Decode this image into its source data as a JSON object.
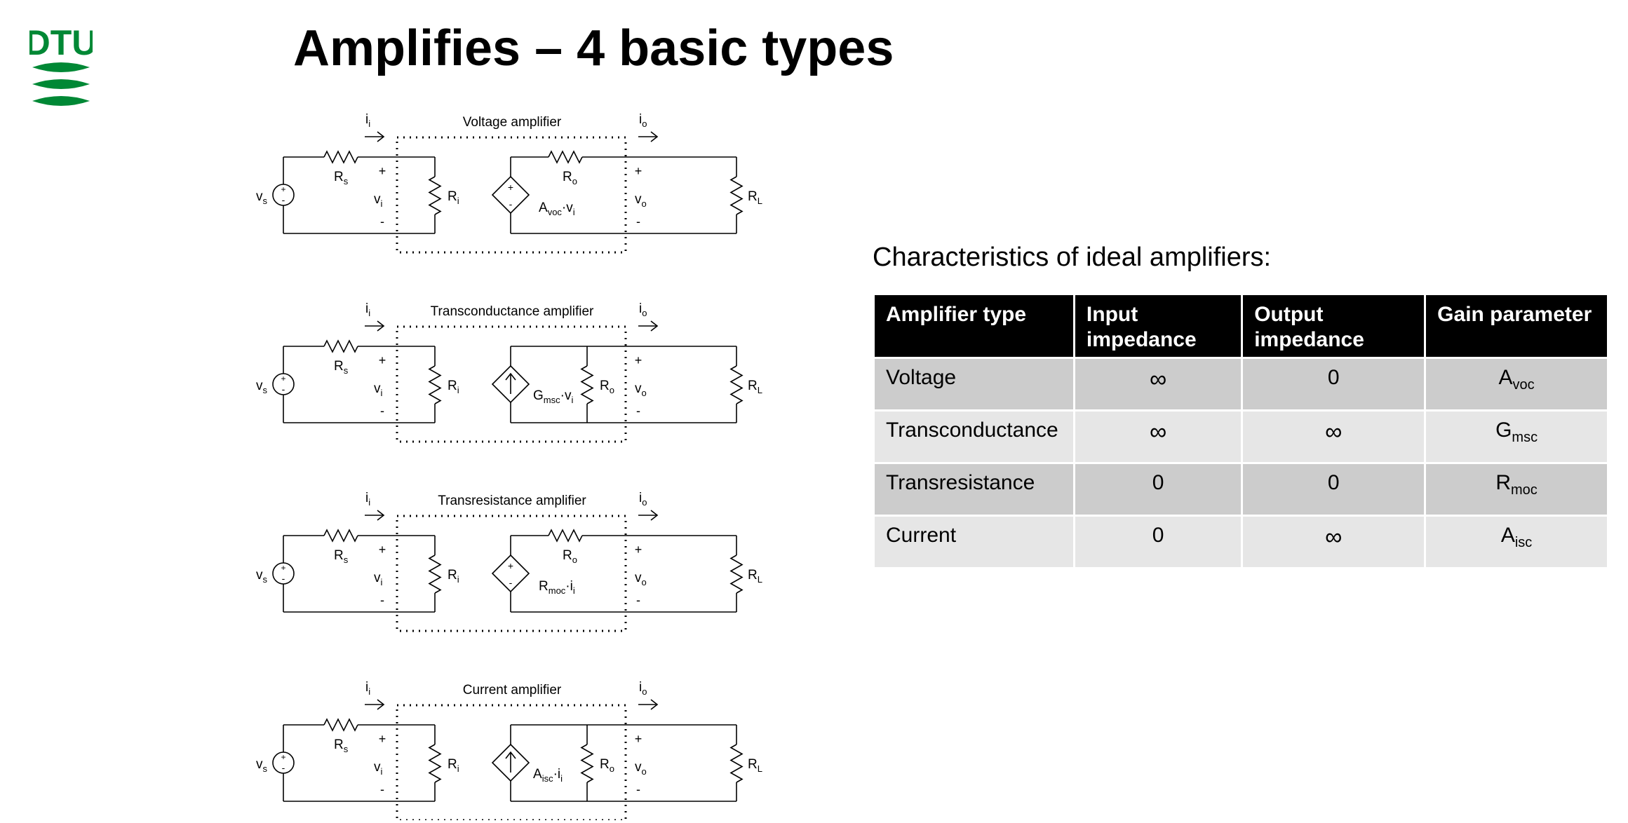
{
  "logo": {
    "text": "DTU",
    "color": "#008835"
  },
  "slide": {
    "title": "Amplifies – 4 basic types"
  },
  "circuits": [
    {
      "title": "Voltage amplifier",
      "source": "vs",
      "rs": "Rs",
      "ii": "ii",
      "io": "io",
      "vi": "vi",
      "ri": "Ri",
      "ro": "Ro",
      "vo": "vo",
      "rl": "RL",
      "gain": "Avoc·vi",
      "kind": "voltage"
    },
    {
      "title": "Transconductance amplifier",
      "source": "vs",
      "rs": "Rs",
      "ii": "ii",
      "io": "io",
      "vi": "vi",
      "ri": "Ri",
      "ro": "Ro",
      "vo": "vo",
      "rl": "RL",
      "gain": "Gmsc·vi",
      "kind": "current"
    },
    {
      "title": "Transresistance amplifier",
      "source": "vs",
      "rs": "Rs",
      "ii": "ii",
      "io": "io",
      "vi": "vi",
      "ri": "Ri",
      "ro": "Ro",
      "vo": "vo",
      "rl": "RL",
      "gain": "Rmoc·ii",
      "kind": "voltage"
    },
    {
      "title": "Current amplifier",
      "source": "vs",
      "rs": "Rs",
      "ii": "ii",
      "io": "io",
      "vi": "vi",
      "ri": "Ri",
      "ro": "Ro",
      "vo": "vo",
      "rl": "RL",
      "gain": "Aisc·ii",
      "kind": "current"
    }
  ],
  "characteristics": {
    "heading": "Characteristics of ideal amplifiers:",
    "headers": [
      "Amplifier type",
      "Input impedance",
      "Output impedance",
      "Gain parameter"
    ],
    "rows": [
      {
        "type": "Voltage",
        "input": "∞",
        "output": "0",
        "gain_sym": "A",
        "gain_sub": "voc"
      },
      {
        "type": "Transconductance",
        "input": "∞",
        "output": "∞",
        "gain_sym": "G",
        "gain_sub": "msc"
      },
      {
        "type": "Transresistance",
        "input": "0",
        "output": "0",
        "gain_sym": "R",
        "gain_sub": "moc"
      },
      {
        "type": "Current",
        "input": "0",
        "output": "∞",
        "gain_sym": "A",
        "gain_sub": "isc"
      }
    ]
  }
}
